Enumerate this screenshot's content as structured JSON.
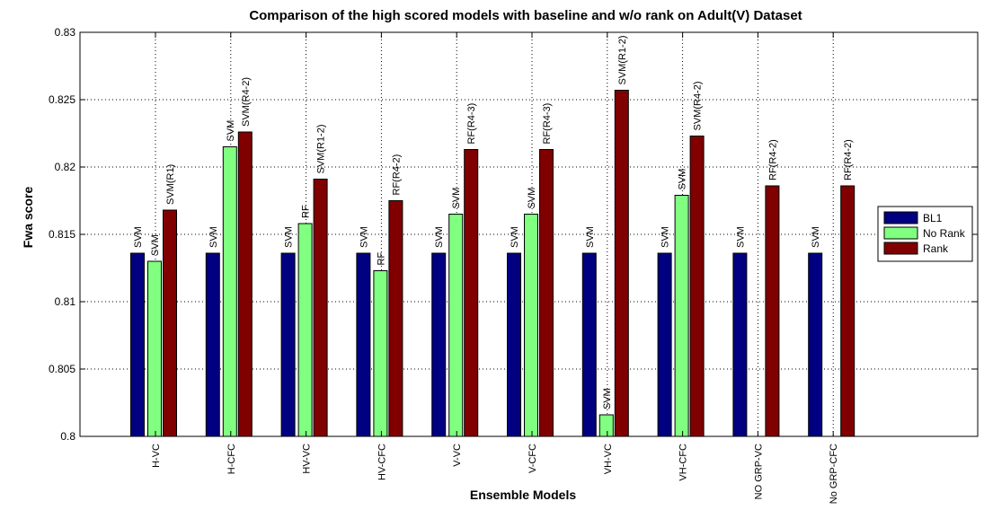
{
  "chart_data": {
    "type": "bar",
    "title": "Comparison of the high scored models with baseline and w/o rank on Adult(V) Dataset",
    "xlabel": "Ensemble Models",
    "ylabel": "Fwa score",
    "ylim": [
      0.8,
      0.83
    ],
    "yticks": [
      0.8,
      0.805,
      0.81,
      0.815,
      0.82,
      0.825,
      0.83
    ],
    "ytick_labels": [
      "0.8",
      "0.805",
      "0.81",
      "0.815",
      "0.82",
      "0.825",
      "0.83"
    ],
    "grid": true,
    "legend_position": "right",
    "categories": [
      "H-VC",
      "H-CFC",
      "HV-VC",
      "HV-CFC",
      "V-VC",
      "V-CFC",
      "VH-VC",
      "VH-CFC",
      "NO GRP-VC",
      "No GRP-CFC"
    ],
    "series": [
      {
        "name": "BL1",
        "color": "#000080",
        "values": [
          0.8136,
          0.8136,
          0.8136,
          0.8136,
          0.8136,
          0.8136,
          0.8136,
          0.8136,
          0.8136,
          0.8136
        ],
        "labels": [
          "SVM",
          "SVM",
          "SVM",
          "SVM",
          "SVM",
          "SVM",
          "SVM",
          "SVM",
          "SVM",
          "SVM"
        ]
      },
      {
        "name": "No Rank",
        "color": "#80ff80",
        "values": [
          0.813,
          0.8215,
          0.8158,
          0.8123,
          0.8165,
          0.8165,
          0.8016,
          0.8179,
          null,
          null
        ],
        "labels": [
          "SVM",
          "SVM",
          "RF",
          "RF",
          "SVM",
          "SVM",
          "SVM",
          "SVM",
          "",
          ""
        ]
      },
      {
        "name": "Rank",
        "color": "#800000",
        "values": [
          0.8168,
          0.8226,
          0.8191,
          0.8175,
          0.8213,
          0.8213,
          0.8257,
          0.8223,
          0.8186,
          0.8186
        ],
        "labels": [
          "SVM(R1)",
          "SVM(R4-2)",
          "SVM(R1-2)",
          "RF(R4-2)",
          "RF(R4-3)",
          "RF(R4-3)",
          "SVM(R1-2)",
          "SVM(R4-2)",
          "RF(R4-2)",
          "RF(R4-2)"
        ]
      }
    ]
  }
}
